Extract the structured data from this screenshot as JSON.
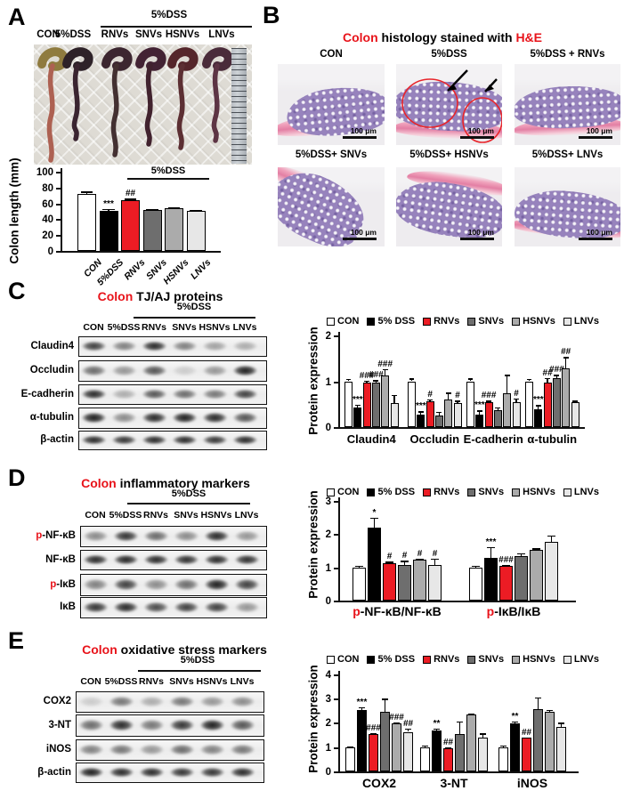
{
  "figure": {
    "legend_labels": [
      "CON",
      "5% DSS",
      "RNVs",
      "SNVs",
      "HSNVs",
      "LNVs"
    ],
    "series_colors": [
      "#ffffff",
      "#000000",
      "#ec1c24",
      "#6e6e6e",
      "#ababab",
      "#e7e7e7"
    ],
    "panelA": {
      "label": "A",
      "photo": {
        "bracket_label": "5%DSS",
        "lane_labels": [
          "CON",
          "5%DSS",
          "RNVs",
          "SNVs",
          "HSNVs",
          "LNVs"
        ]
      },
      "chart_data": {
        "type": "bar",
        "ylabel": "Colon length (mm)",
        "ylim": [
          0,
          100
        ],
        "yticks": [
          0,
          20,
          40,
          60,
          80,
          100
        ],
        "bracket_label": "5%DSS",
        "categories": [
          "CON",
          "5%DSS",
          "RNVs",
          "SNVs",
          "HSNVs",
          "LNVs"
        ],
        "values": [
          72,
          51,
          64,
          52,
          54,
          51
        ],
        "errors": [
          3,
          2,
          2,
          1,
          1,
          1
        ],
        "sig": [
          "",
          "***",
          "##",
          "",
          "",
          ""
        ]
      }
    },
    "panelB": {
      "label": "B",
      "title_parts": [
        {
          "text": "Colon",
          "red": true
        },
        {
          "text": " histology stained with ",
          "red": false
        },
        {
          "text": "H&E",
          "red": true
        }
      ],
      "scale_bar_label": "100 μm",
      "tiles": [
        {
          "label": "CON",
          "annotated": false
        },
        {
          "label": "5%DSS",
          "annotated": true
        },
        {
          "label": "5%DSS + RNVs",
          "annotated": false
        },
        {
          "label": "5%DSS+ SNVs",
          "annotated": false
        },
        {
          "label": "5%DSS+ HSNVs",
          "annotated": false
        },
        {
          "label": "5%DSS+ LNVs",
          "annotated": false
        }
      ]
    },
    "panelC": {
      "label": "C",
      "title_parts": [
        {
          "text": "Colon",
          "red": true
        },
        {
          "text": " TJ/AJ proteins",
          "red": false
        }
      ],
      "blot": {
        "bracket_label": "5%DSS",
        "lane_labels": [
          "CON",
          "5%DSS",
          "RNVs",
          "SNVs",
          "HSNVs",
          "LNVs"
        ],
        "rows": [
          {
            "red_prefix": "",
            "name": "Claudin4",
            "bands": [
              0.8,
              0.5,
              0.9,
              0.5,
              0.35,
              0.3
            ]
          },
          {
            "red_prefix": "",
            "name": "Occludin",
            "bands": [
              0.6,
              0.4,
              0.7,
              0.15,
              0.4,
              0.95
            ]
          },
          {
            "red_prefix": "",
            "name": "E-cadherin",
            "bands": [
              0.9,
              0.3,
              0.7,
              0.6,
              0.55,
              0.8
            ]
          },
          {
            "red_prefix": "",
            "name": "α-tubulin",
            "bands": [
              0.95,
              0.45,
              0.9,
              0.95,
              0.9,
              0.7
            ]
          },
          {
            "red_prefix": "",
            "name": "β-actin",
            "bands": [
              0.9,
              0.85,
              0.9,
              0.9,
              0.85,
              0.9
            ]
          }
        ]
      },
      "chart_data": {
        "type": "bar",
        "ylabel": "Protein expression",
        "ylim": [
          0,
          2
        ],
        "yticks": [
          0,
          1,
          2
        ],
        "legend": [
          "CON",
          "5% DSS",
          "RNVs",
          "SNVs",
          "HSNVs",
          "LNVs"
        ],
        "groups": [
          {
            "red_prefix": "",
            "name": "Claudin4",
            "values": [
              1.0,
              0.42,
              0.98,
              0.97,
              1.13,
              0.52
            ],
            "errors": [
              0.05,
              0.07,
              0.03,
              0.05,
              0.14,
              0.18
            ],
            "sig": [
              "",
              "***",
              "###",
              "###",
              "###",
              ""
            ]
          },
          {
            "red_prefix": "",
            "name": "Occludin",
            "values": [
              1.0,
              0.27,
              0.57,
              0.26,
              0.6,
              0.52
            ],
            "errors": [
              0.06,
              0.07,
              0.03,
              0.07,
              0.15,
              0.06
            ],
            "sig": [
              "",
              "***",
              "#",
              "",
              "",
              "#"
            ]
          },
          {
            "red_prefix": "",
            "name": "E-cadherin",
            "values": [
              1.0,
              0.28,
              0.55,
              0.37,
              0.74,
              0.54
            ],
            "errors": [
              0.06,
              0.08,
              0.03,
              0.06,
              0.4,
              0.08
            ],
            "sig": [
              "",
              "***",
              "###",
              "",
              "",
              "#"
            ]
          },
          {
            "red_prefix": "",
            "name": "α-tubulin",
            "values": [
              1.0,
              0.38,
              0.97,
              1.07,
              1.28,
              0.55
            ],
            "errors": [
              0.05,
              0.1,
              0.1,
              0.07,
              0.25,
              0.03
            ],
            "sig": [
              "",
              "***",
              "##",
              "###",
              "##",
              ""
            ]
          }
        ]
      }
    },
    "panelD": {
      "label": "D",
      "title_parts": [
        {
          "text": "Colon",
          "red": true
        },
        {
          "text": " inflammatory markers",
          "red": false
        }
      ],
      "blot": {
        "bracket_label": "5%DSS",
        "lane_labels": [
          "CON",
          "5%DSS",
          "RNVs",
          "SNVs",
          "HSNVs",
          "LNVs"
        ],
        "rows": [
          {
            "red_prefix": "p",
            "name": "-NF-κB",
            "bands": [
              0.45,
              0.85,
              0.6,
              0.45,
              0.9,
              0.4
            ]
          },
          {
            "red_prefix": "",
            "name": "NF-κB",
            "bands": [
              0.9,
              0.92,
              0.9,
              0.88,
              0.9,
              0.88
            ]
          },
          {
            "red_prefix": "p",
            "name": "-IκB",
            "bands": [
              0.5,
              0.8,
              0.45,
              0.6,
              0.95,
              0.8
            ]
          },
          {
            "red_prefix": "",
            "name": "IκB",
            "bands": [
              0.85,
              0.9,
              0.75,
              0.8,
              0.8,
              0.4
            ]
          }
        ]
      },
      "chart_data": {
        "type": "bar",
        "ylabel": "Protein expression",
        "ylim": [
          0,
          3
        ],
        "yticks": [
          0,
          1,
          2,
          3
        ],
        "legend": [
          "CON",
          "5% DSS",
          "RNVs",
          "SNVs",
          "HSNVs",
          "LNVs"
        ],
        "groups": [
          {
            "red_prefix": "p",
            "name": "-NF-κB/NF-κB",
            "values": [
              1.0,
              2.2,
              1.12,
              1.08,
              1.22,
              1.07
            ],
            "errors": [
              0.05,
              0.3,
              0.05,
              0.12,
              0.03,
              0.2
            ],
            "sig": [
              "",
              "*",
              "#",
              "#",
              "#",
              "#"
            ]
          },
          {
            "red_prefix": "p",
            "name": "-IκB/IκB",
            "values": [
              1.0,
              1.28,
              1.05,
              1.33,
              1.53,
              1.77
            ],
            "errors": [
              0.05,
              0.33,
              0.03,
              0.1,
              0.04,
              0.2
            ],
            "sig": [
              "",
              "***",
              "###",
              "",
              "",
              ""
            ]
          }
        ]
      }
    },
    "panelE": {
      "label": "E",
      "title_parts": [
        {
          "text": "Colon",
          "red": true
        },
        {
          "text": " oxidative stress markers",
          "red": false
        }
      ],
      "blot": {
        "bracket_label": "5%DSS",
        "lane_labels": [
          "CON",
          "5%DSS",
          "RNVs",
          "SNVs",
          "HSNVs",
          "LNVs"
        ],
        "rows": [
          {
            "red_prefix": "",
            "name": "COX2",
            "bands": [
              0.15,
              0.55,
              0.3,
              0.55,
              0.4,
              0.45
            ]
          },
          {
            "red_prefix": "",
            "name": "3-NT",
            "bands": [
              0.6,
              0.9,
              0.55,
              0.85,
              0.95,
              0.7
            ]
          },
          {
            "red_prefix": "",
            "name": "iNOS",
            "bands": [
              0.5,
              0.55,
              0.4,
              0.6,
              0.5,
              0.55
            ]
          },
          {
            "red_prefix": "",
            "name": "β-actin",
            "bands": [
              0.95,
              0.9,
              0.9,
              0.85,
              0.85,
              0.9
            ]
          }
        ]
      },
      "chart_data": {
        "type": "bar",
        "ylabel": "Protein expression",
        "ylim": [
          0,
          4
        ],
        "yticks": [
          0,
          1,
          2,
          3,
          4
        ],
        "legend": [
          "CON",
          "5% DSS",
          "RNVs",
          "SNVs",
          "HSNVs",
          "LNVs"
        ],
        "groups": [
          {
            "red_prefix": "",
            "name": "COX2",
            "values": [
              1.0,
              2.52,
              1.55,
              2.47,
              1.97,
              1.63
            ],
            "errors": [
              0.04,
              0.12,
              0.04,
              0.52,
              0.05,
              0.14
            ],
            "sig": [
              "",
              "***",
              "###",
              "",
              "###",
              "##"
            ]
          },
          {
            "red_prefix": "",
            "name": "3-NT",
            "values": [
              1.0,
              1.7,
              0.95,
              1.55,
              2.33,
              1.38
            ],
            "errors": [
              0.07,
              0.07,
              0.05,
              0.5,
              0.04,
              0.18
            ],
            "sig": [
              "",
              "**",
              "##",
              "",
              "",
              ""
            ]
          },
          {
            "red_prefix": "",
            "name": "iNOS",
            "values": [
              1.0,
              1.96,
              1.38,
              2.55,
              2.47,
              1.82
            ],
            "errors": [
              0.06,
              0.1,
              0.03,
              0.5,
              0.07,
              0.18
            ],
            "sig": [
              "",
              "**",
              "##",
              "",
              "",
              ""
            ]
          }
        ]
      }
    }
  }
}
